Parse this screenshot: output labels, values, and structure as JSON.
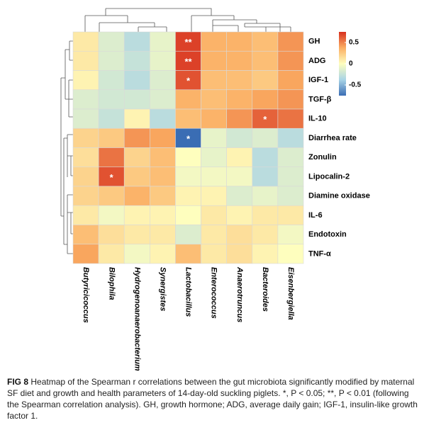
{
  "chart_data": {
    "type": "heatmap",
    "rows": [
      "GH",
      "ADG",
      "IGF-1",
      "TGF-β",
      "IL-10",
      "Diarrhea rate",
      "Zonulin",
      "Lipocalin-2",
      "Diamine oxidase",
      "IL-6",
      "Endotoxin",
      "TNF-α"
    ],
    "columns": [
      "Butyricicoccus",
      "Bilophila",
      "Hydrogenoanaerobacterium",
      "Synergistes",
      "Lactobacillus",
      "Enterococcus",
      "Anaerotruncus",
      "Bacteroides",
      "Eisenbergiella"
    ],
    "values": [
      [
        0.1,
        -0.15,
        -0.3,
        -0.1,
        0.7,
        0.35,
        0.35,
        0.3,
        0.45
      ],
      [
        0.1,
        -0.15,
        -0.25,
        -0.1,
        0.7,
        0.35,
        0.35,
        0.3,
        0.45
      ],
      [
        0.05,
        -0.2,
        -0.3,
        -0.15,
        0.65,
        0.3,
        0.3,
        0.25,
        0.4
      ],
      [
        -0.15,
        -0.2,
        -0.2,
        -0.15,
        0.35,
        0.3,
        0.35,
        0.4,
        0.45
      ],
      [
        -0.15,
        -0.25,
        0.05,
        -0.3,
        0.3,
        0.35,
        0.45,
        0.6,
        0.55
      ],
      [
        0.2,
        0.25,
        0.45,
        0.4,
        -0.75,
        -0.1,
        -0.2,
        -0.15,
        -0.3
      ],
      [
        0.15,
        0.55,
        0.2,
        0.3,
        0.0,
        -0.1,
        0.05,
        -0.3,
        -0.15
      ],
      [
        0.2,
        0.65,
        0.25,
        0.3,
        -0.05,
        -0.05,
        -0.05,
        -0.3,
        -0.15
      ],
      [
        0.2,
        0.25,
        0.35,
        0.25,
        0.05,
        0.05,
        -0.15,
        -0.1,
        -0.15
      ],
      [
        0.1,
        -0.05,
        0.05,
        0.05,
        0.0,
        0.1,
        0.05,
        0.1,
        0.1
      ],
      [
        0.3,
        0.15,
        0.1,
        0.1,
        -0.15,
        0.1,
        0.15,
        0.1,
        -0.05
      ],
      [
        0.4,
        0.1,
        -0.05,
        0.05,
        0.3,
        0.1,
        0.15,
        0.05,
        0.0
      ]
    ],
    "value_labels": [
      [
        null,
        null,
        null,
        null,
        "**",
        null,
        null,
        null,
        null
      ],
      [
        null,
        null,
        null,
        null,
        "**",
        null,
        null,
        null,
        null
      ],
      [
        null,
        null,
        null,
        null,
        "*",
        null,
        null,
        null,
        null
      ],
      [
        null,
        null,
        null,
        null,
        null,
        null,
        null,
        null,
        null
      ],
      [
        null,
        null,
        null,
        null,
        null,
        null,
        null,
        "*",
        null
      ],
      [
        null,
        null,
        null,
        null,
        "*",
        null,
        null,
        null,
        null
      ],
      [
        null,
        null,
        null,
        null,
        null,
        null,
        null,
        null,
        null
      ],
      [
        null,
        "*",
        null,
        null,
        null,
        null,
        null,
        null,
        null
      ],
      [
        null,
        null,
        null,
        null,
        null,
        null,
        null,
        null,
        null
      ],
      [
        null,
        null,
        null,
        null,
        null,
        null,
        null,
        null,
        null
      ],
      [
        null,
        null,
        null,
        null,
        null,
        null,
        null,
        null,
        null
      ],
      [
        null,
        null,
        null,
        null,
        null,
        null,
        null,
        null,
        null
      ]
    ],
    "zlim": [
      -0.75,
      0.75
    ],
    "zticks": [
      0.5,
      0,
      -0.5
    ],
    "colorscale": [
      "#3a6db4",
      "#a9d4e6",
      "#fefebe",
      "#fbae63",
      "#d7301f"
    ]
  },
  "caption": {
    "label": "FIG 8",
    "text": "Heatmap of the Spearman r correlations between the gut microbiota significantly modified by maternal SF diet and growth and health parameters of 14-day-old suckling piglets. *, P < 0.05; **, P < 0.01 (following the Spearman correlation analysis). GH, growth hormone; ADG, average daily gain; IGF-1, insulin-like growth factor 1."
  }
}
